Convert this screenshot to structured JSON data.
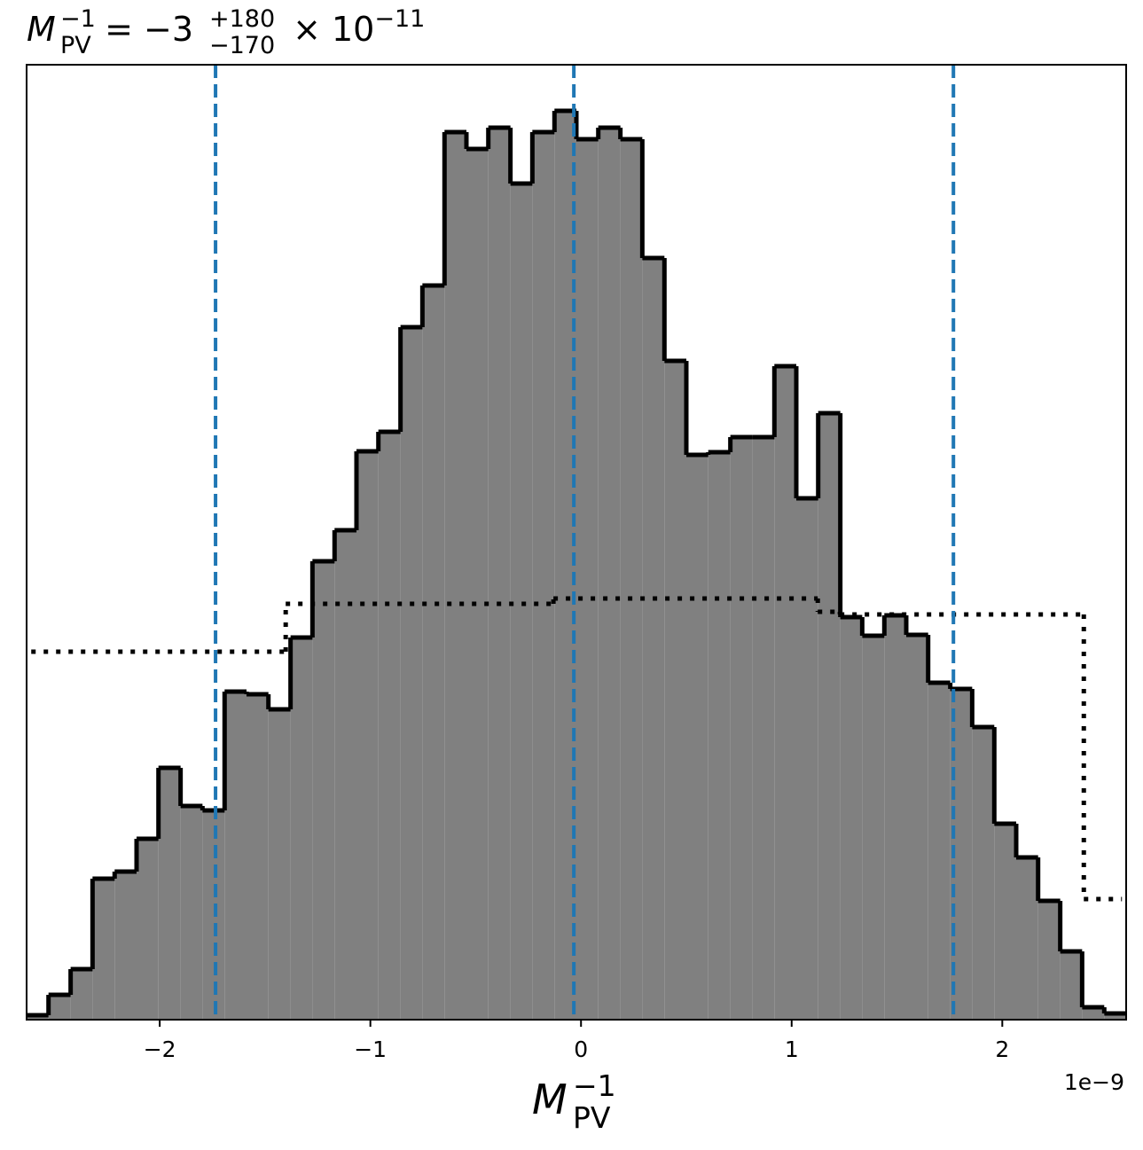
{
  "chart_data": {
    "type": "histogram",
    "title": {
      "symbol": "M",
      "sub": "PV",
      "sup": "−1",
      "eq": " = −3",
      "upper": "+180",
      "lower": "−170",
      "times": " × 10",
      "exp": "−11"
    },
    "x_label": {
      "symbol": "M",
      "sub": "PV",
      "sup": "−1"
    },
    "offset_label": "1e−9",
    "xlim": [
      -2.632,
      2.588
    ],
    "ylim": [
      0,
      1077
    ],
    "xticks": [
      {
        "value": -2,
        "label": "−2"
      },
      {
        "value": -1,
        "label": "−1"
      },
      0,
      1,
      2
    ],
    "color": "#808080",
    "edge_color": "#000000",
    "bins": [
      -2.632,
      -2.528,
      -2.423,
      -2.319,
      -2.214,
      -2.11,
      -2.006,
      -1.901,
      -1.797,
      -1.692,
      -1.588,
      -1.484,
      -1.379,
      -1.275,
      -1.17,
      -1.066,
      -0.962,
      -0.857,
      -0.753,
      -0.648,
      -0.544,
      -0.44,
      -0.335,
      -0.231,
      -0.126,
      -0.022,
      0.082,
      0.187,
      0.291,
      0.396,
      0.5,
      0.604,
      0.709,
      0.813,
      0.918,
      1.022,
      1.126,
      1.231,
      1.335,
      1.44,
      1.544,
      1.648,
      1.753,
      1.857,
      1.962,
      2.066,
      2.17,
      2.275,
      2.379,
      2.484,
      2.588
    ],
    "values": [
      5,
      28,
      57,
      159,
      167,
      204,
      284,
      241,
      236,
      370,
      367,
      350,
      431,
      517,
      552,
      641,
      663,
      781,
      828,
      1001,
      982,
      1006,
      943,
      1001,
      1025,
      993,
      1006,
      993,
      859,
      743,
      637,
      640,
      657,
      657,
      737,
      588,
      684,
      454,
      433,
      456,
      434,
      380,
      373,
      330,
      221,
      183,
      134,
      77,
      14,
      7
    ],
    "prior": {
      "bins": [
        -2.61,
        -1.402,
        -0.131,
        1.124,
        1.229,
        2.387,
        2.568
      ],
      "values": [
        415,
        469,
        475,
        460,
        457,
        136
      ],
      "style": "dotted",
      "color": "#000000"
    },
    "quantiles": [
      -1.735,
      -0.034,
      1.768
    ],
    "quantile_color": "#1f77b4"
  }
}
